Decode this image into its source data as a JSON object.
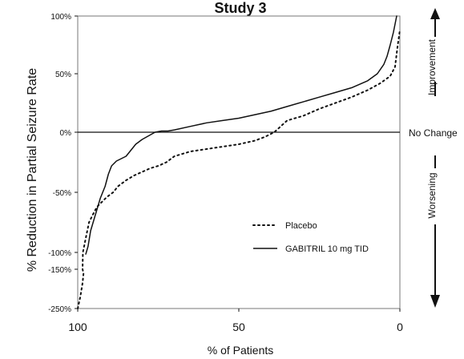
{
  "chart_data": {
    "type": "line",
    "title": "Study 3",
    "xlabel": "% of Patients",
    "ylabel": "% Reduction in Partial Seizure Rate",
    "x_reversed": true,
    "xlim": [
      100,
      0
    ],
    "x_ticks": [
      100,
      50,
      0
    ],
    "x_tick_labels": [
      "100",
      "50",
      "0"
    ],
    "y_tick_labels": [
      "100%",
      "50%",
      "0%",
      "-50%",
      "-100%",
      "-150%",
      "-250%"
    ],
    "grid": false,
    "legend_position": "center-right",
    "zero_line_label": "No Change",
    "right_annotations": {
      "top": "Improvement",
      "bottom": "Worsening"
    },
    "series": [
      {
        "name": "Placebo",
        "style": "dotted",
        "color": "#111111",
        "points": [
          [
            100,
            -250
          ],
          [
            99.2,
            -220
          ],
          [
            98.5,
            -185
          ],
          [
            98.2,
            -160
          ],
          [
            98.5,
            -150
          ],
          [
            98.4,
            -100
          ],
          [
            97.5,
            -88
          ],
          [
            96.5,
            -75
          ],
          [
            95.2,
            -68
          ],
          [
            94,
            -62
          ],
          [
            92.5,
            -58
          ],
          [
            91,
            -54
          ],
          [
            89,
            -50
          ],
          [
            87.5,
            -45
          ],
          [
            85,
            -40
          ],
          [
            82.5,
            -36
          ],
          [
            80,
            -33
          ],
          [
            77.5,
            -30
          ],
          [
            75,
            -28
          ],
          [
            72.5,
            -25
          ],
          [
            70,
            -20
          ],
          [
            65,
            -16
          ],
          [
            60,
            -14
          ],
          [
            55,
            -12
          ],
          [
            50,
            -10
          ],
          [
            45,
            -7
          ],
          [
            42,
            -4
          ],
          [
            39,
            0
          ],
          [
            37,
            5
          ],
          [
            35,
            10
          ],
          [
            30,
            14
          ],
          [
            25,
            20
          ],
          [
            20,
            25
          ],
          [
            15,
            30
          ],
          [
            10,
            36
          ],
          [
            6,
            42
          ],
          [
            3,
            48
          ],
          [
            1.5,
            56
          ],
          [
            0.8,
            72
          ],
          [
            0,
            88
          ]
        ]
      },
      {
        "name": "GABITRIL 10 mg TID",
        "style": "solid",
        "color": "#111111",
        "points": [
          [
            97.5,
            -105
          ],
          [
            96.8,
            -95
          ],
          [
            96,
            -82
          ],
          [
            95,
            -73
          ],
          [
            94,
            -64
          ],
          [
            93,
            -55
          ],
          [
            91.5,
            -45
          ],
          [
            90.5,
            -35
          ],
          [
            89.5,
            -28
          ],
          [
            88,
            -24
          ],
          [
            86.5,
            -22
          ],
          [
            85,
            -20
          ],
          [
            83.5,
            -15
          ],
          [
            82,
            -10
          ],
          [
            80,
            -6
          ],
          [
            78,
            -3
          ],
          [
            76,
            0
          ],
          [
            74,
            1
          ],
          [
            72,
            1
          ],
          [
            70,
            2
          ],
          [
            65,
            5
          ],
          [
            60,
            8
          ],
          [
            55,
            10
          ],
          [
            50,
            12
          ],
          [
            45,
            15
          ],
          [
            40,
            18
          ],
          [
            35,
            22
          ],
          [
            30,
            26
          ],
          [
            25,
            30
          ],
          [
            20,
            34
          ],
          [
            15,
            38
          ],
          [
            10,
            44
          ],
          [
            7,
            50
          ],
          [
            5,
            58
          ],
          [
            4,
            65
          ],
          [
            3,
            75
          ],
          [
            2,
            86
          ],
          [
            1,
            100
          ]
        ]
      }
    ]
  }
}
